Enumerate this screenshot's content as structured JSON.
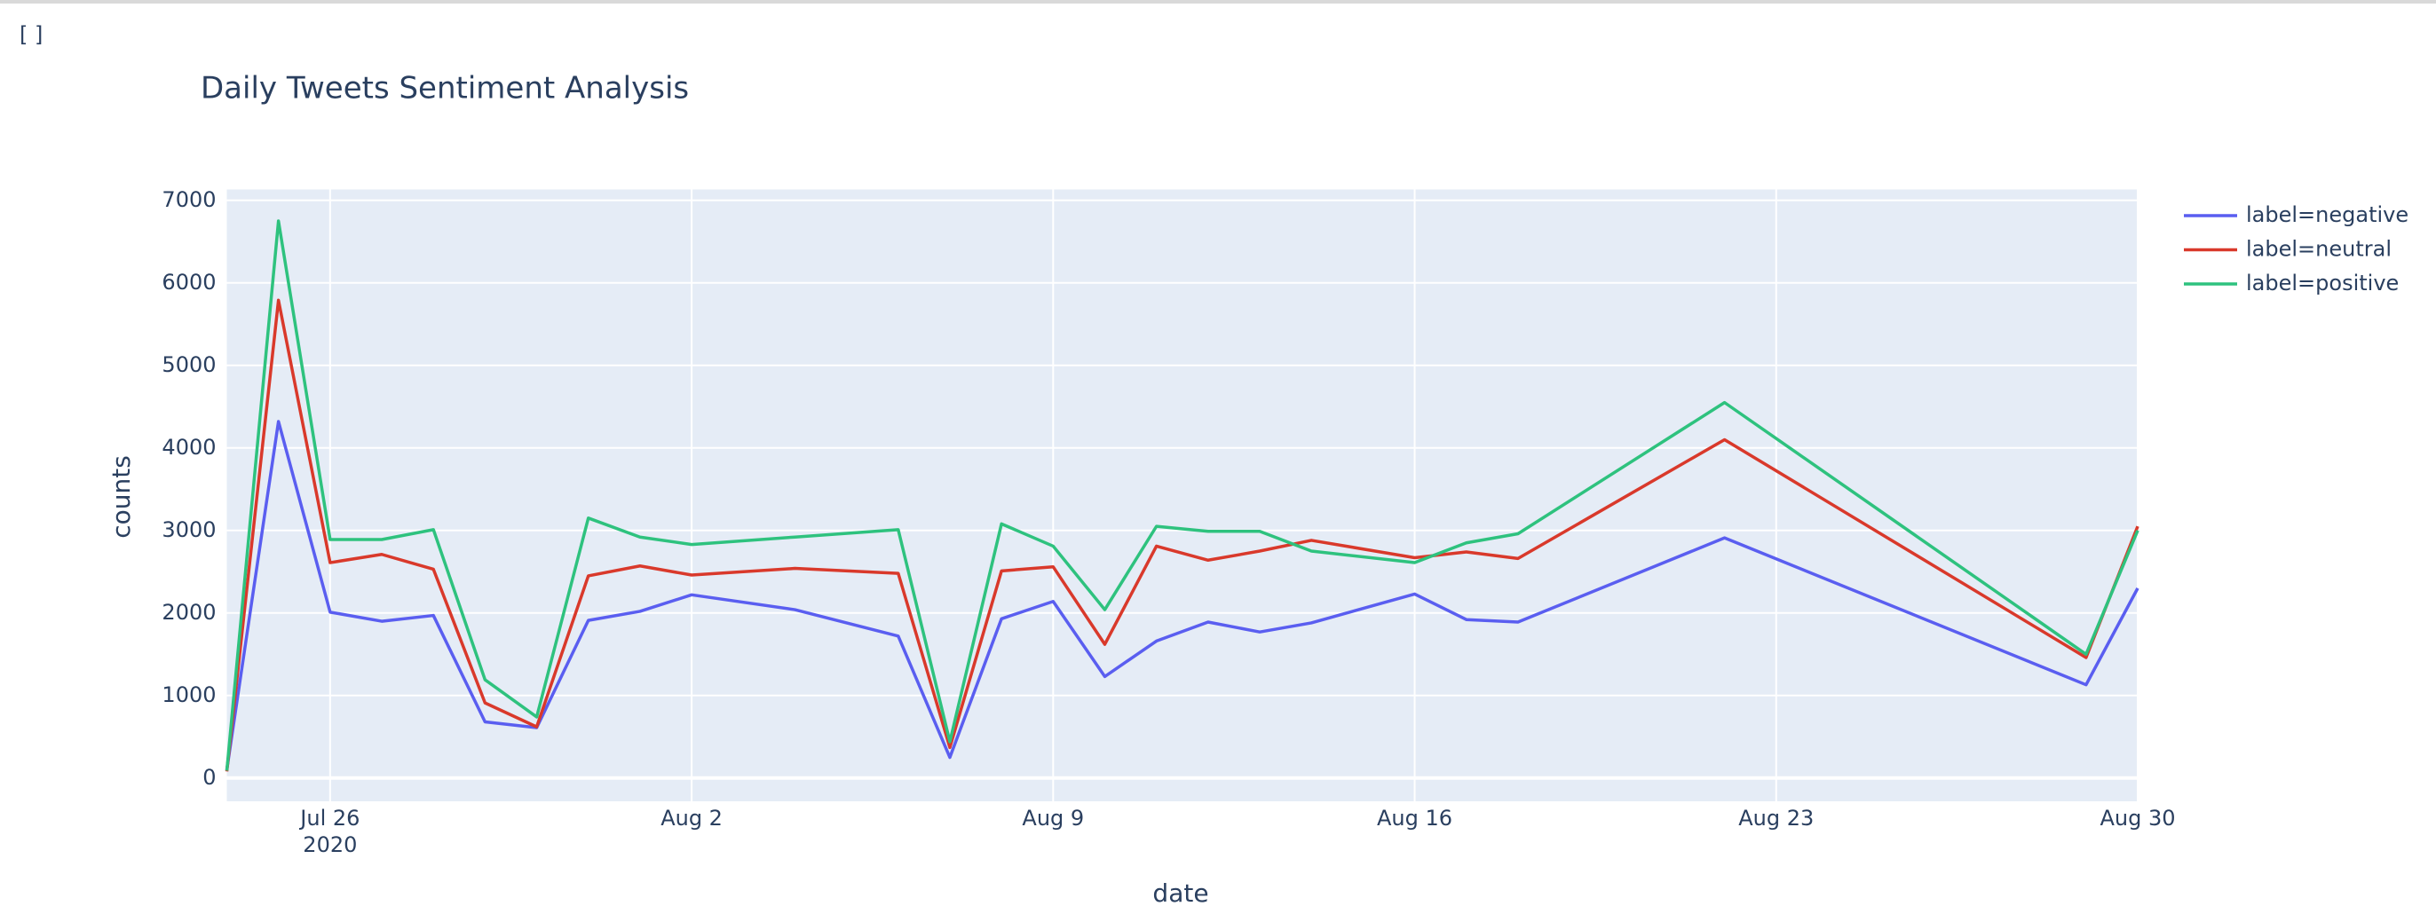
{
  "page_label": "[ ]",
  "chart_data": {
    "type": "line",
    "title": "Daily Tweets Sentiment Analysis",
    "x_label": "date",
    "y_label": "counts",
    "x_year_label": "2020",
    "x": [
      "2020-07-24",
      "2020-07-25",
      "2020-07-26",
      "2020-07-27",
      "2020-07-28",
      "2020-07-29",
      "2020-07-30",
      "2020-07-31",
      "2020-08-01",
      "2020-08-02",
      "2020-08-04",
      "2020-08-06",
      "2020-08-07",
      "2020-08-08",
      "2020-08-09",
      "2020-08-10",
      "2020-08-11",
      "2020-08-12",
      "2020-08-13",
      "2020-08-14",
      "2020-08-16",
      "2020-08-17",
      "2020-08-18",
      "2020-08-22",
      "2020-08-29",
      "2020-08-30"
    ],
    "series": [
      {
        "name": "label=negative",
        "color": "#5a5ef0",
        "values": [
          100,
          4320,
          2010,
          1900,
          1970,
          680,
          610,
          1910,
          2020,
          2220,
          2040,
          1720,
          250,
          1930,
          2140,
          1230,
          1660,
          1890,
          1770,
          1880,
          2230,
          1920,
          1890,
          2910,
          1130,
          2300
        ]
      },
      {
        "name": "label=neutral",
        "color": "#d9392b",
        "values": [
          80,
          5790,
          2610,
          2710,
          2530,
          910,
          620,
          2450,
          2570,
          2460,
          2540,
          2480,
          370,
          2510,
          2560,
          1620,
          2810,
          2640,
          2750,
          2880,
          2670,
          2740,
          2660,
          4100,
          1460,
          3050
        ]
      },
      {
        "name": "label=positive",
        "color": "#2ec27e",
        "values": [
          90,
          6750,
          2890,
          2890,
          3010,
          1190,
          740,
          3150,
          2920,
          2830,
          2920,
          3010,
          440,
          3080,
          2810,
          2040,
          3050,
          2990,
          2990,
          2750,
          2610,
          2850,
          2960,
          4550,
          1500,
          3000
        ]
      }
    ],
    "xlim": [
      "2020-07-24",
      "2020-08-30"
    ],
    "xticks": [
      {
        "value": "2020-07-26",
        "label": "Jul 26"
      },
      {
        "value": "2020-08-02",
        "label": "Aug 2"
      },
      {
        "value": "2020-08-09",
        "label": "Aug 9"
      },
      {
        "value": "2020-08-16",
        "label": "Aug 16"
      },
      {
        "value": "2020-08-23",
        "label": "Aug 23"
      },
      {
        "value": "2020-08-30",
        "label": "Aug 30"
      }
    ],
    "ylim": [
      -282,
      7132
    ],
    "yticks": [
      0,
      1000,
      2000,
      3000,
      4000,
      5000,
      6000,
      7000
    ],
    "grid": true,
    "legend": "top-right"
  }
}
